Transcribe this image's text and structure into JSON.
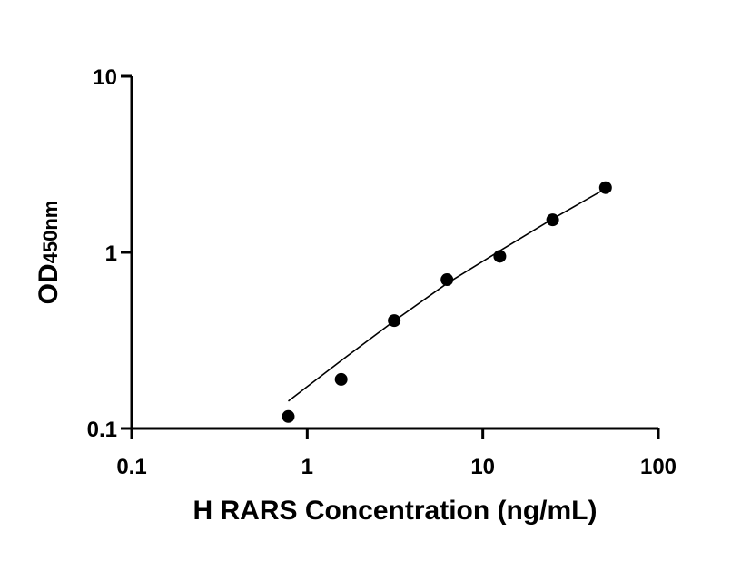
{
  "chart_data": {
    "type": "scatter",
    "xlabel": "H RARS Concentration (ng/mL)",
    "ylabel": "OD",
    "ylabel_subscript": "450nm",
    "x_scale": "log",
    "y_scale": "log",
    "xlim": [
      0.1,
      100
    ],
    "ylim": [
      0.1,
      10
    ],
    "x_ticks": [
      "0.1",
      "1",
      "10",
      "100"
    ],
    "y_ticks": [
      "0.1",
      "1",
      "10"
    ],
    "grid": false,
    "series": [
      {
        "x": [
          0.78,
          1.56,
          3.13,
          6.25,
          12.5,
          25,
          50
        ],
        "y": [
          0.117,
          0.19,
          0.41,
          0.7,
          0.95,
          1.53,
          2.33
        ]
      }
    ],
    "fit_line": {
      "x": [
        0.78,
        1.56,
        3.13,
        6.25,
        12.5,
        25,
        50
      ],
      "y": [
        0.143,
        0.243,
        0.408,
        0.666,
        1.02,
        1.55,
        2.3
      ]
    },
    "colors": {
      "marker": "#000000",
      "line": "#000000",
      "axis": "#000000"
    }
  }
}
